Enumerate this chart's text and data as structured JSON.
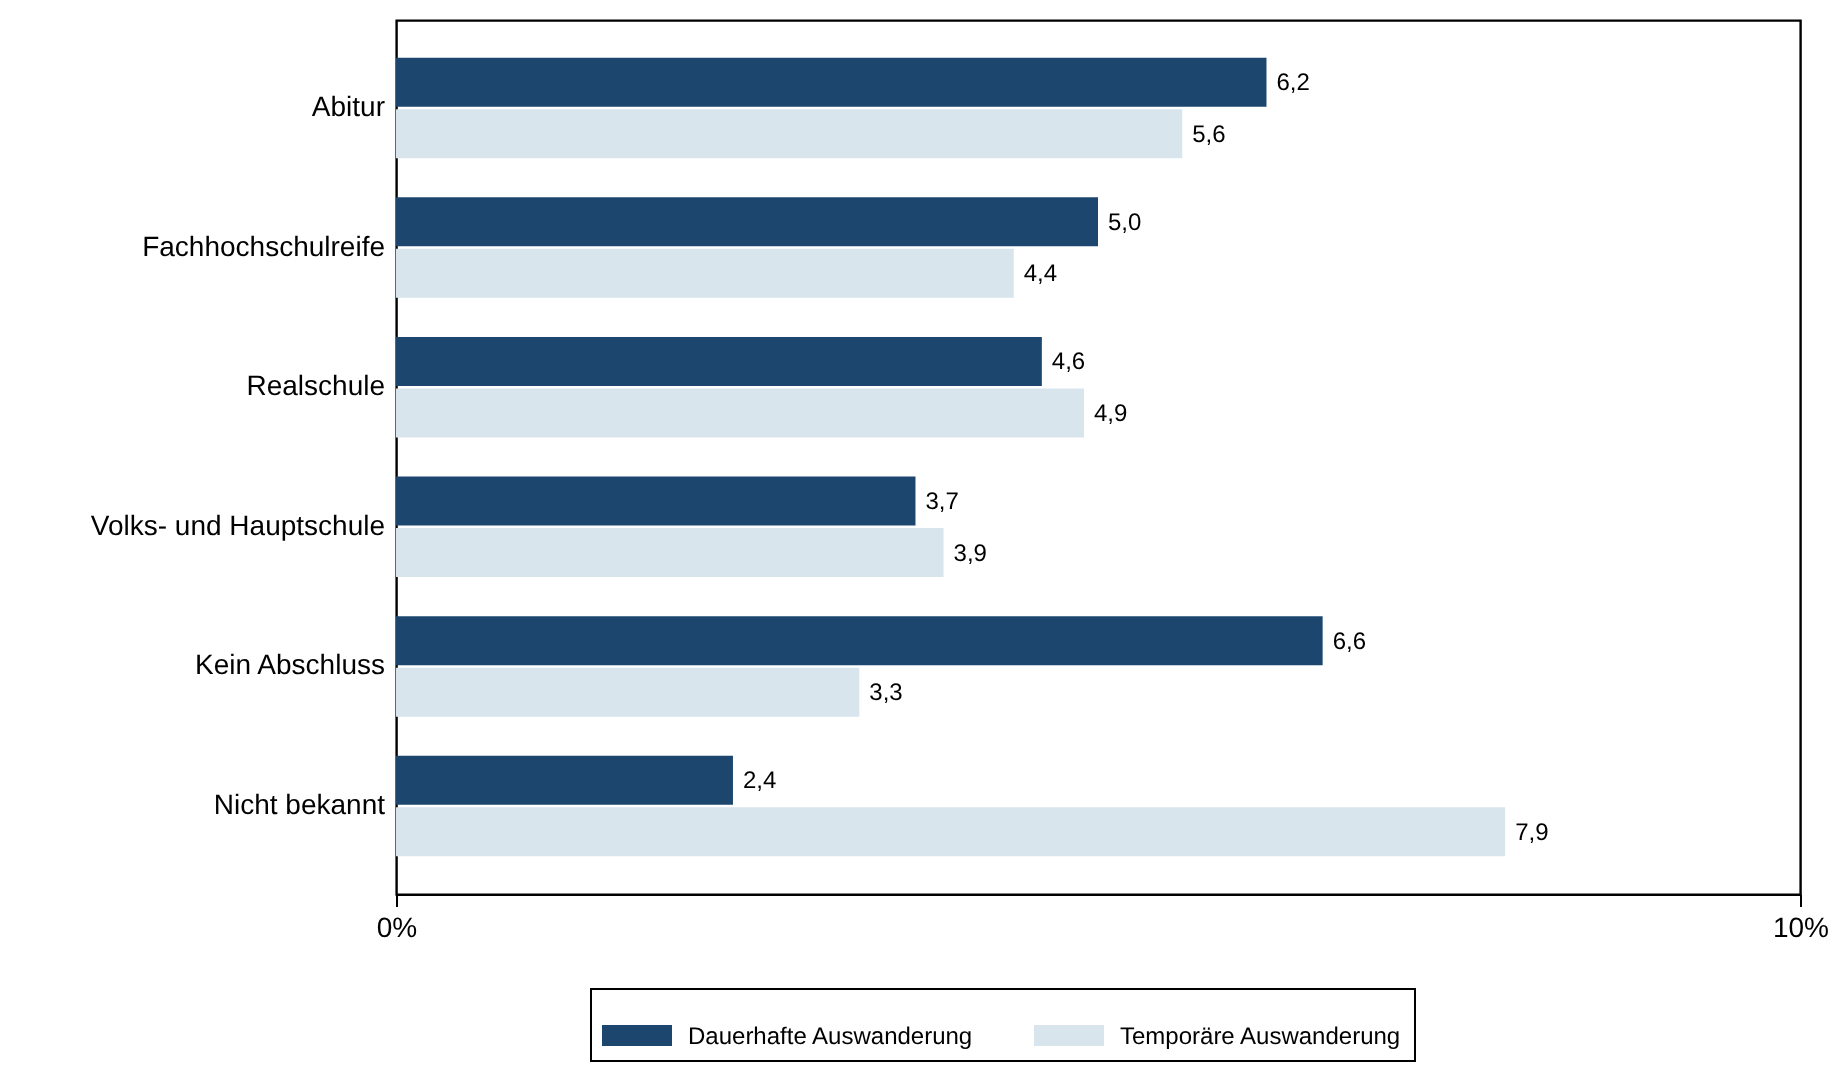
{
  "chart_data": {
    "type": "bar",
    "orientation": "horizontal",
    "categories": [
      "Abitur",
      "Fachhochschulreife",
      "Realschule",
      "Volks- und Hauptschule",
      "Kein Abschluss",
      "Nicht bekannt"
    ],
    "series": [
      {
        "name": "Dauerhafte Auswanderung",
        "color": "#1c466e",
        "values": [
          6.2,
          5.0,
          4.6,
          3.7,
          6.6,
          2.4
        ],
        "value_labels": [
          "6,2",
          "5,0",
          "4,6",
          "3,7",
          "6,6",
          "2,4"
        ]
      },
      {
        "name": "Temporäre Auswanderung",
        "color": "#d9e5ec",
        "values": [
          5.6,
          4.4,
          4.9,
          3.9,
          3.3,
          7.9
        ],
        "value_labels": [
          "5,6",
          "4,4",
          "4,9",
          "3,9",
          "3,3",
          "7,9"
        ]
      }
    ],
    "xlim": [
      0,
      10
    ],
    "xticks": [
      {
        "value": 0,
        "label": "0%"
      },
      {
        "value": 10,
        "label": "10%"
      }
    ],
    "grid": false,
    "legend": "bottom"
  }
}
